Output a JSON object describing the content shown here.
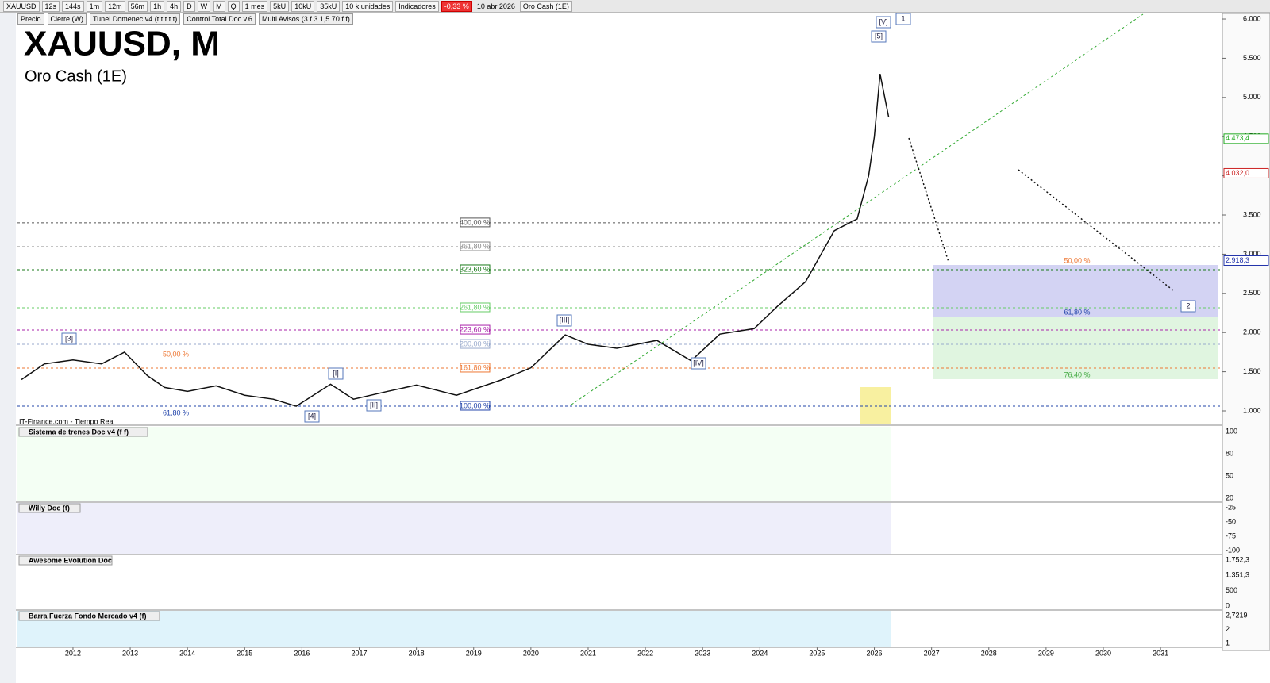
{
  "toolbar": {
    "symbol": "XAUUSD",
    "intervals": [
      "12s",
      "144s",
      "1m",
      "12m",
      "56m",
      "1h",
      "4h",
      "D",
      "W",
      "M",
      "Q"
    ],
    "period": "1 mes",
    "sizes": [
      "5kU",
      "10kU",
      "35kU"
    ],
    "units": "10 k unidades",
    "indicators": "Indicadores",
    "change": "-0,33 %",
    "date": "10 abr 2026",
    "instrument": "Oro Cash (1E)"
  },
  "legend_row": [
    "Precio",
    "Cierre (W)",
    "Tunel Domenec v4 (t t t t t)",
    "Control Total Doc v.6",
    "Multi Avisos (3 f 3 1,5 70 f f)"
  ],
  "header": {
    "title": "XAUUSD, M",
    "subtitle": "Oro Cash (1E)"
  },
  "source": "IT-Finance.com - Tiempo Real",
  "chart_data": {
    "type": "line",
    "x": [
      2011.1,
      2011.5,
      2012.0,
      2012.5,
      2012.9,
      2013.3,
      2013.6,
      2014.0,
      2014.5,
      2015.0,
      2015.5,
      2015.9,
      2016.5,
      2016.9,
      2017.5,
      2018.0,
      2018.7,
      2019.5,
      2020.0,
      2020.6,
      2021.0,
      2021.5,
      2022.2,
      2022.8,
      2023.3,
      2023.9,
      2024.3,
      2024.8,
      2025.3,
      2025.7,
      2025.9,
      2026.0,
      2026.1,
      2026.25
    ],
    "series": [
      {
        "name": "Precio",
        "color": "#111111",
        "values": [
          1400,
          1600,
          1650,
          1600,
          1750,
          1450,
          1300,
          1250,
          1320,
          1200,
          1150,
          1060,
          1340,
          1150,
          1250,
          1330,
          1200,
          1400,
          1550,
          1970,
          1850,
          1800,
          1900,
          1640,
          1980,
          2050,
          2330,
          2650,
          3300,
          3450,
          4000,
          4500,
          5300,
          4750
        ]
      }
    ],
    "xlim": [
      2011.03,
      2032.08
    ],
    "xticks": [
      2012,
      2013,
      2014,
      2015,
      2016,
      2017,
      2018,
      2019,
      2020,
      2021,
      2022,
      2023,
      2024,
      2025,
      2026,
      2027,
      2028,
      2029,
      2030,
      2031
    ],
    "ylim": [
      828,
      6061
    ],
    "yticks": [
      {
        "value": 1000,
        "label": "1.000"
      },
      {
        "value": 1500,
        "label": "1.500"
      },
      {
        "value": 2000,
        "label": "2.000"
      },
      {
        "value": 2500,
        "label": "2.500"
      },
      {
        "value": 3000,
        "label": "3.000"
      },
      {
        "value": 3500,
        "label": "3.500"
      },
      {
        "value": 4000,
        "label": "4.000"
      },
      {
        "value": 4500,
        "label": "4.500"
      },
      {
        "value": 5000,
        "label": "5.000"
      },
      {
        "value": 5500,
        "label": "5.500"
      },
      {
        "value": 6000,
        "label": "6.000"
      }
    ],
    "fib_levels": [
      {
        "label": "400,00 %",
        "value": 3400,
        "color": "#555555"
      },
      {
        "label": "361,80 %",
        "value": 3095,
        "color": "#888888"
      },
      {
        "label": "323,60 %",
        "value": 2802,
        "color": "#1a7a1a"
      },
      {
        "label": "261,80 %",
        "value": 2316,
        "color": "#66cc66"
      },
      {
        "label": "223,60 %",
        "value": 2032,
        "color": "#aa22aa"
      },
      {
        "label": "200,00 %",
        "value": 1850,
        "color": "#99aacc"
      },
      {
        "label": "161,80 %",
        "value": 1547,
        "color": "#ee7733"
      },
      {
        "label": "100,00 %",
        "value": 1061,
        "color": "#2244aa"
      }
    ],
    "price_tags": [
      {
        "label": "4.473,4",
        "value": 4473.4,
        "color": "#22aa22"
      },
      {
        "label": "4.032,0",
        "value": 4032,
        "color": "#cc2222"
      },
      {
        "label": "2.918,3",
        "value": 2918.3,
        "color": "#2233aa"
      }
    ],
    "wave_labels": [
      "[3]",
      "[4]",
      "[I]",
      "[II]",
      "[III]",
      "[IV]",
      "[V]",
      "[5]",
      "1",
      "2"
    ],
    "target_zone": [
      "50,00 %",
      "61,80 %",
      "76,40 %"
    ],
    "other_labels": [
      "61,80 %",
      "50,00 %"
    ]
  },
  "panels": [
    {
      "name": "Sistema de trenes Doc v4 (f f)",
      "axis": [
        "100",
        "80",
        "50",
        "20"
      ]
    },
    {
      "name": "Willy Doc (t)",
      "axis": [
        "-25",
        "-50",
        "-75",
        "-100"
      ]
    },
    {
      "name": "Awesome Evolution Doc",
      "axis": [
        "1.752,3",
        "1.351,3",
        "500",
        "0"
      ]
    },
    {
      "name": "Barra Fuerza Fondo Mercado v4 (f)",
      "axis": [
        "2,7219",
        "2",
        "1"
      ]
    }
  ]
}
